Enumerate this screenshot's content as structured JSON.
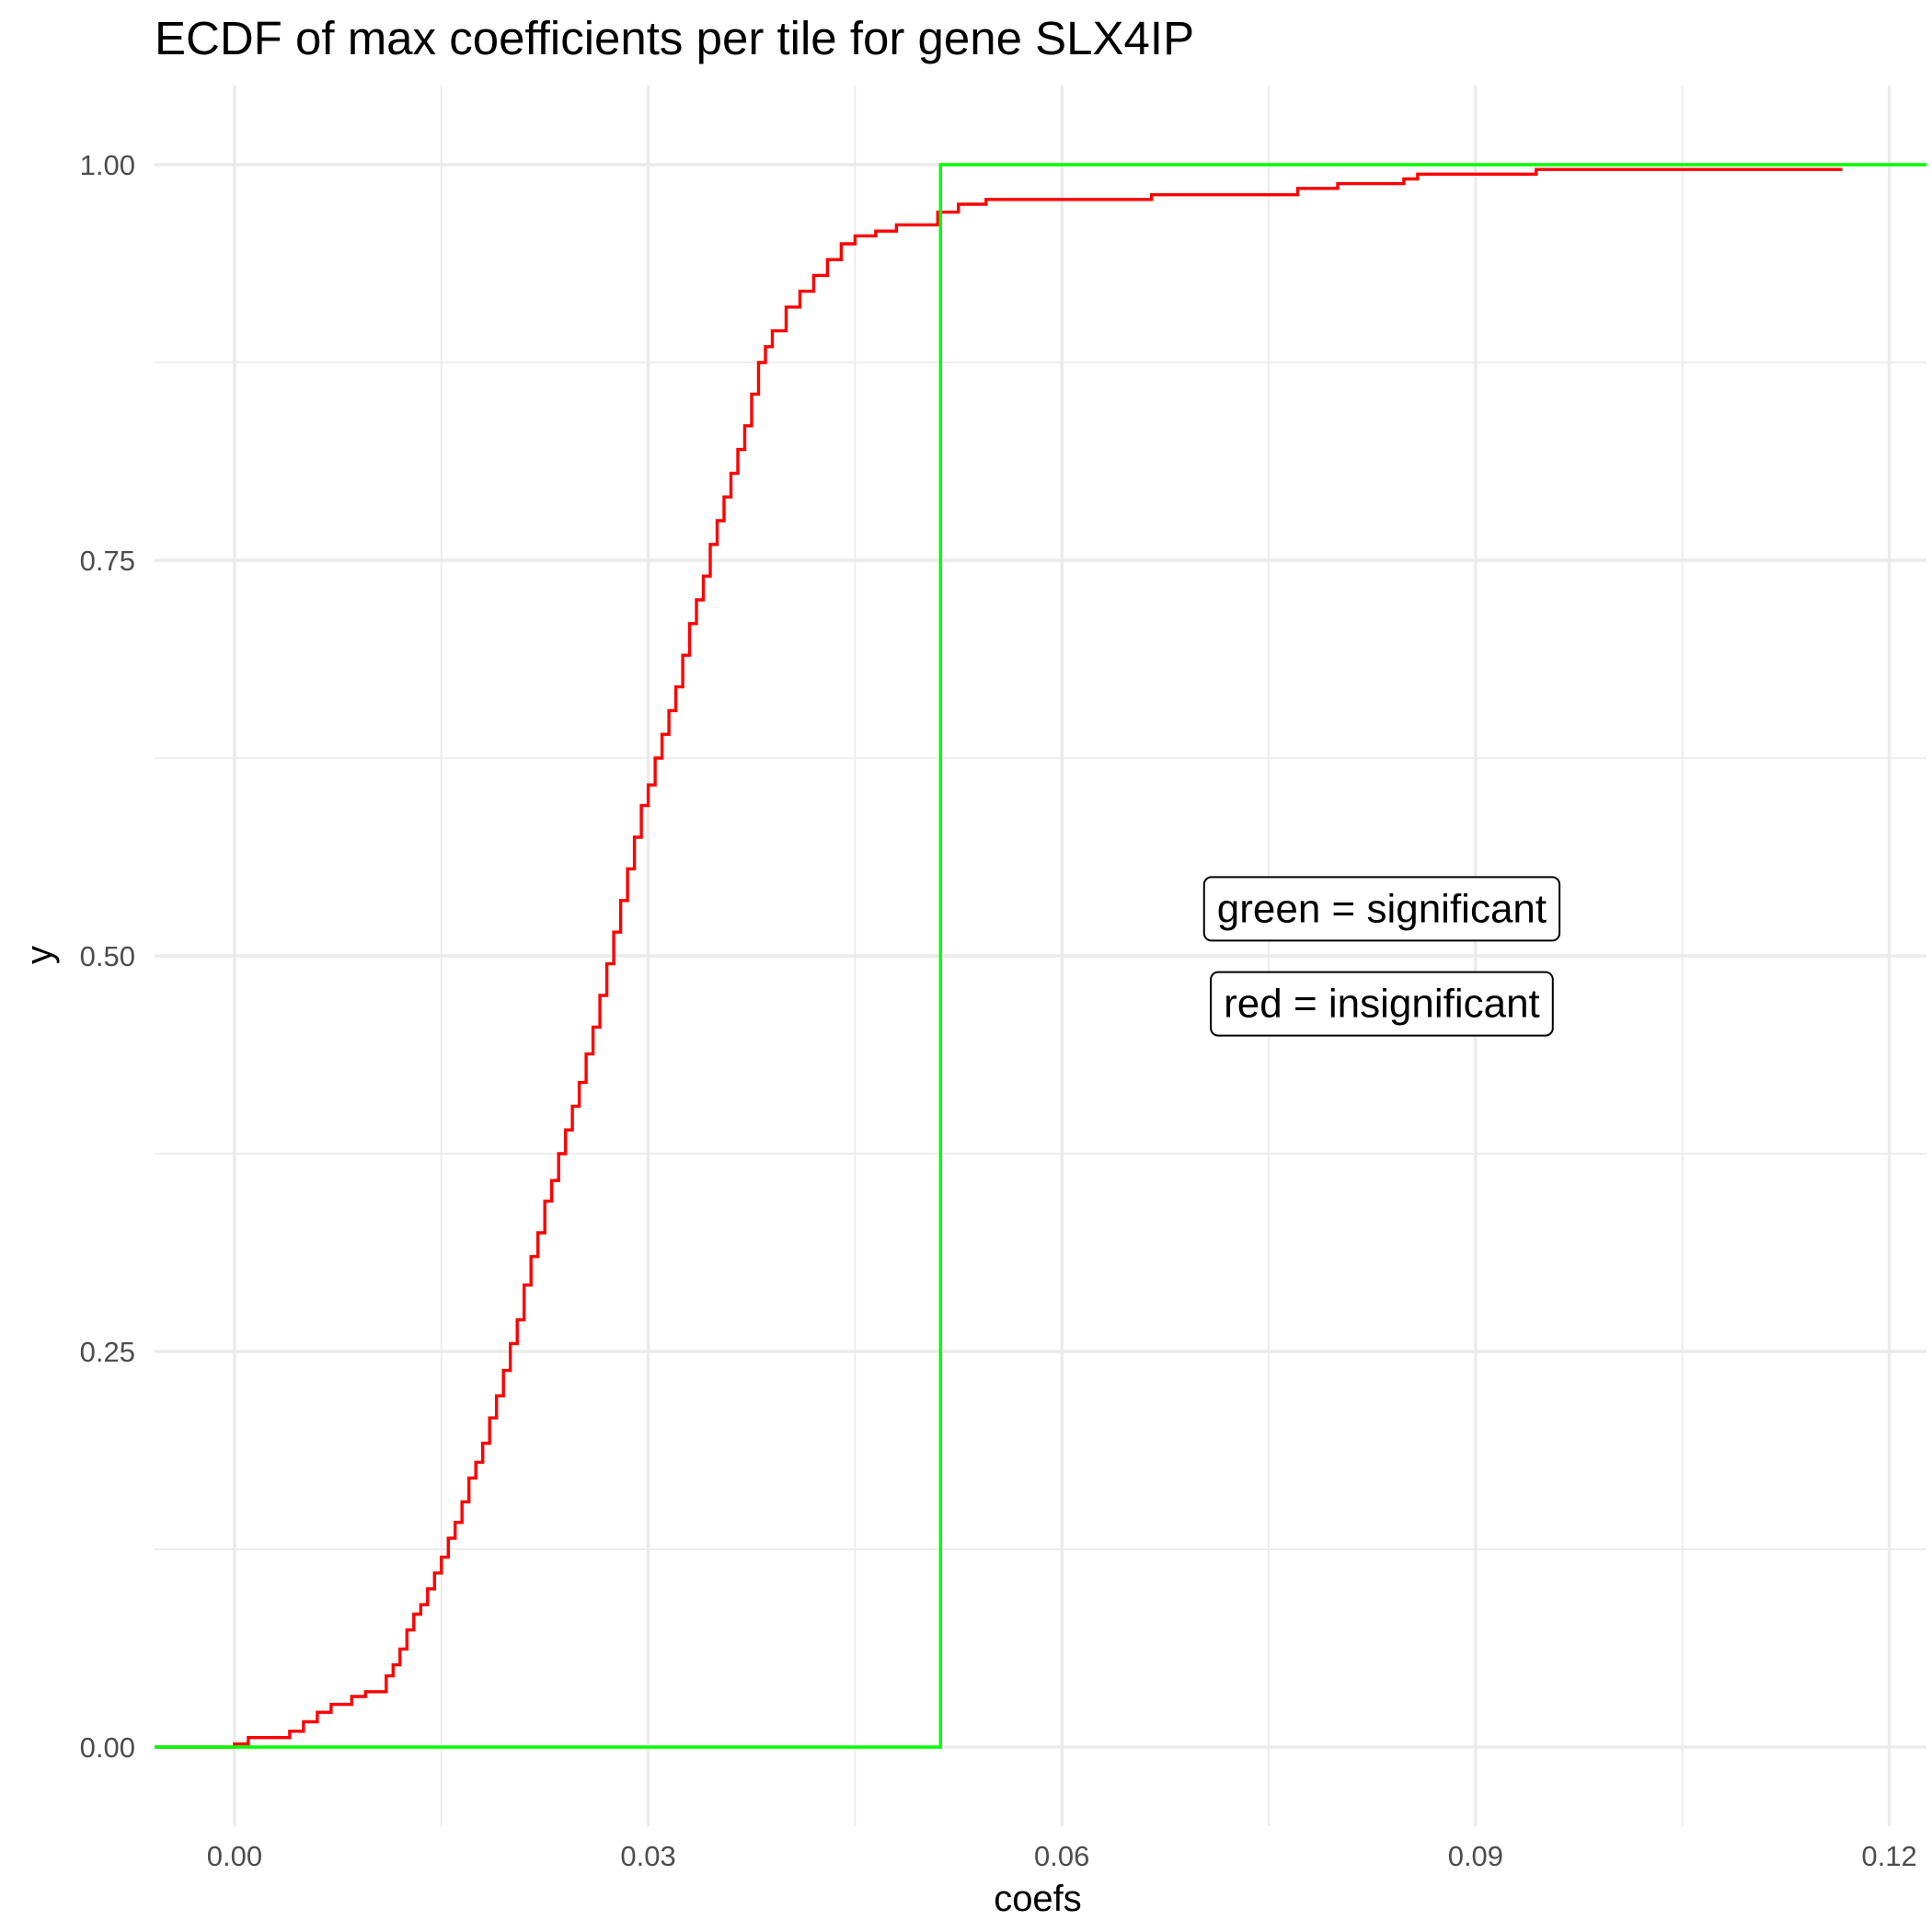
{
  "chart_data": {
    "type": "line",
    "title": "ECDF of max coefficients per tile for gene SLX4IP",
    "xlabel": "coefs",
    "ylabel": "y",
    "xlim": [
      -0.0058,
      0.1227
    ],
    "ylim": [
      -0.05,
      1.05
    ],
    "x_ticks": [
      0.0,
      0.03,
      0.06,
      0.09,
      0.12
    ],
    "x_tick_labels": [
      "0.00",
      "0.03",
      "0.06",
      "0.09",
      "0.12"
    ],
    "y_ticks": [
      0.0,
      0.25,
      0.5,
      0.75,
      1.0
    ],
    "y_tick_labels": [
      "0.00",
      "0.25",
      "0.50",
      "0.75",
      "1.00"
    ],
    "grid": true,
    "annotations": [
      {
        "text": "green = significant",
        "x": 0.0832,
        "y": 0.53
      },
      {
        "text": "red = insignificant",
        "x": 0.0832,
        "y": 0.47
      }
    ],
    "series": [
      {
        "color": "#ff0000",
        "step": true,
        "x": [
          -0.0058,
          0.0,
          0.001,
          0.004,
          0.005,
          0.006,
          0.007,
          0.0085,
          0.0095,
          0.011,
          0.0115,
          0.012,
          0.0125,
          0.013,
          0.0135,
          0.014,
          0.0145,
          0.015,
          0.0155,
          0.016,
          0.0165,
          0.017,
          0.0175,
          0.018,
          0.0185,
          0.019,
          0.0195,
          0.02,
          0.0205,
          0.021,
          0.0215,
          0.022,
          0.0225,
          0.023,
          0.0235,
          0.024,
          0.0245,
          0.025,
          0.0255,
          0.026,
          0.0265,
          0.027,
          0.0275,
          0.028,
          0.0285,
          0.029,
          0.0295,
          0.03,
          0.0305,
          0.031,
          0.0315,
          0.032,
          0.0325,
          0.033,
          0.0335,
          0.034,
          0.0345,
          0.035,
          0.0355,
          0.036,
          0.0365,
          0.037,
          0.0375,
          0.038,
          0.0385,
          0.039,
          0.04,
          0.041,
          0.042,
          0.043,
          0.044,
          0.045,
          0.0465,
          0.048,
          0.051,
          0.0525,
          0.0545,
          0.0665,
          0.0771,
          0.08,
          0.0848,
          0.0858,
          0.0944,
          0.1166
        ],
        "y": [
          0.0,
          0.002,
          0.006,
          0.01,
          0.016,
          0.022,
          0.027,
          0.032,
          0.035,
          0.045,
          0.052,
          0.062,
          0.074,
          0.084,
          0.09,
          0.1,
          0.11,
          0.12,
          0.132,
          0.142,
          0.155,
          0.17,
          0.18,
          0.192,
          0.208,
          0.222,
          0.238,
          0.255,
          0.27,
          0.292,
          0.31,
          0.325,
          0.345,
          0.358,
          0.375,
          0.39,
          0.405,
          0.42,
          0.438,
          0.455,
          0.475,
          0.495,
          0.515,
          0.535,
          0.555,
          0.575,
          0.595,
          0.608,
          0.625,
          0.64,
          0.655,
          0.67,
          0.69,
          0.71,
          0.725,
          0.74,
          0.76,
          0.775,
          0.79,
          0.805,
          0.82,
          0.835,
          0.855,
          0.875,
          0.885,
          0.895,
          0.91,
          0.92,
          0.93,
          0.94,
          0.95,
          0.955,
          0.958,
          0.962,
          0.97,
          0.975,
          0.978,
          0.981,
          0.985,
          0.988,
          0.991,
          0.994,
          0.997,
          0.997
        ]
      },
      {
        "color": "#00ff00",
        "step": true,
        "x": [
          -0.0058,
          0.0512,
          0.1227
        ],
        "y": [
          0.0,
          1.0,
          1.0
        ]
      }
    ]
  }
}
